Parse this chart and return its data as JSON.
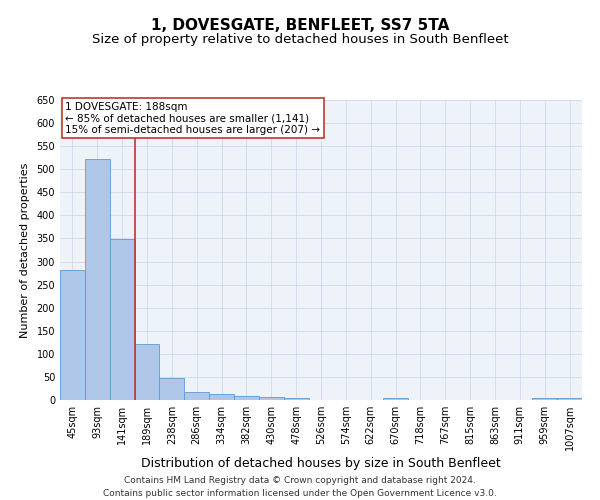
{
  "title": "1, DOVESGATE, BENFLEET, SS7 5TA",
  "subtitle": "Size of property relative to detached houses in South Benfleet",
  "xlabel": "Distribution of detached houses by size in South Benfleet",
  "ylabel": "Number of detached properties",
  "footer_line1": "Contains HM Land Registry data © Crown copyright and database right 2024.",
  "footer_line2": "Contains public sector information licensed under the Open Government Licence v3.0.",
  "categories": [
    "45sqm",
    "93sqm",
    "141sqm",
    "189sqm",
    "238sqm",
    "286sqm",
    "334sqm",
    "382sqm",
    "430sqm",
    "478sqm",
    "526sqm",
    "574sqm",
    "622sqm",
    "670sqm",
    "718sqm",
    "767sqm",
    "815sqm",
    "863sqm",
    "911sqm",
    "959sqm",
    "1007sqm"
  ],
  "values": [
    281,
    522,
    348,
    122,
    48,
    18,
    12,
    9,
    6,
    5,
    0,
    0,
    0,
    5,
    0,
    0,
    0,
    0,
    0,
    5,
    5
  ],
  "bar_color": "#aec6e8",
  "bar_edge_color": "#5b9bd5",
  "ylim": [
    0,
    650
  ],
  "yticks": [
    0,
    50,
    100,
    150,
    200,
    250,
    300,
    350,
    400,
    450,
    500,
    550,
    600,
    650
  ],
  "annotation_box_text": "1 DOVESGATE: 188sqm\n← 85% of detached houses are smaller (1,141)\n15% of semi-detached houses are larger (207) →",
  "vline_x_index": 3,
  "vline_color": "#c0392b",
  "box_color": "#c0392b",
  "background_color": "#eef2f9",
  "grid_color": "#c8d4e8",
  "title_fontsize": 11,
  "subtitle_fontsize": 9.5,
  "xlabel_fontsize": 9,
  "ylabel_fontsize": 8,
  "tick_fontsize": 7,
  "annotation_fontsize": 7.5,
  "footer_fontsize": 6.5
}
